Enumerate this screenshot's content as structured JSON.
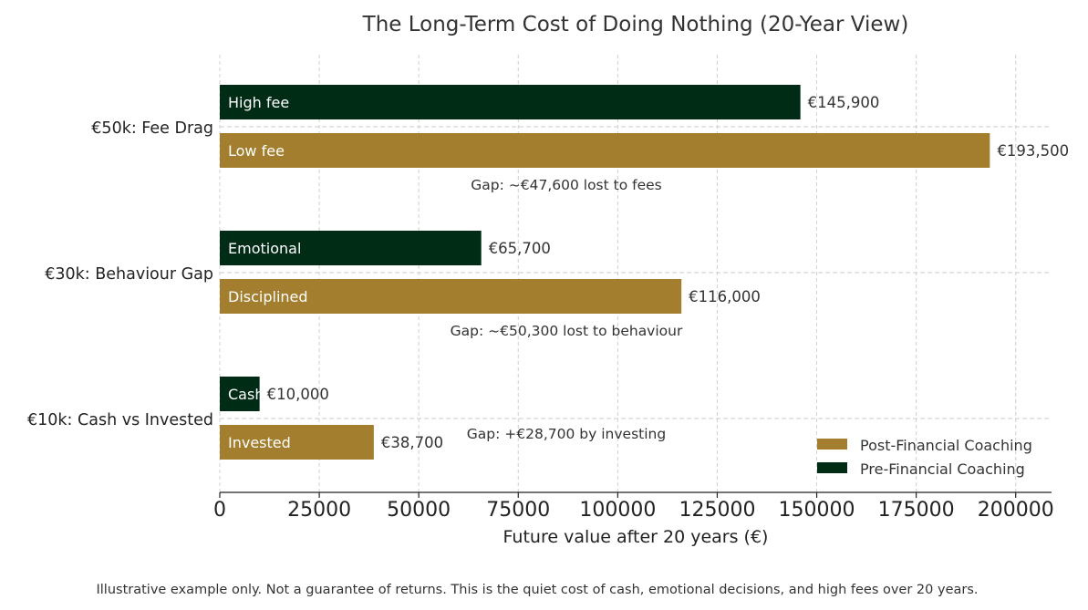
{
  "chart_data": {
    "type": "bar",
    "orientation": "horizontal",
    "title": "The Long-Term Cost of Doing Nothing (20-Year View)",
    "xlabel": "Future value after 20 years (€)",
    "ylabel": "",
    "xlim": [
      0,
      209000
    ],
    "xticks": [
      0,
      25000,
      50000,
      75000,
      100000,
      125000,
      150000,
      175000,
      200000
    ],
    "xtick_labels": [
      "0",
      "25000",
      "50000",
      "75000",
      "100000",
      "125000",
      "150000",
      "175000",
      "200000"
    ],
    "grid": "x, dashed",
    "categories": [
      "€50k: Fee Drag",
      "€30k: Behaviour Gap",
      "€10k: Cash vs Invested"
    ],
    "groups": [
      {
        "category": "€50k: Fee Drag",
        "pre": {
          "label": "High fee",
          "value": 145900,
          "value_label": "€145,900"
        },
        "post": {
          "label": "Low fee",
          "value": 193500,
          "value_label": "€193,500"
        },
        "gap_label": "Gap: ~€47,600 lost to fees"
      },
      {
        "category": "€30k: Behaviour Gap",
        "pre": {
          "label": "Emotional",
          "value": 65700,
          "value_label": "€65,700"
        },
        "post": {
          "label": "Disciplined",
          "value": 116000,
          "value_label": "€116,000"
        },
        "gap_label": "Gap: ~€50,300 lost to behaviour"
      },
      {
        "category": "€10k: Cash vs Invested",
        "pre": {
          "label": "Cash",
          "value": 10000,
          "value_label": "€10,000"
        },
        "post": {
          "label": "Invested",
          "value": 38700,
          "value_label": "€38,700"
        },
        "gap_label": "Gap: +€28,700 by investing"
      }
    ],
    "legend": {
      "position": "lower-right",
      "entries": [
        {
          "name": "Post-Financial Coaching",
          "color": "#a27e2e"
        },
        {
          "name": "Pre-Financial Coaching",
          "color": "#002c16"
        }
      ]
    },
    "colors": {
      "pre": "#002c16",
      "post": "#a27e2e"
    }
  },
  "footnote": "Illustrative example only. Not a guarantee of returns. This is the quiet cost of cash, emotional decisions, and high fees over 20 years."
}
